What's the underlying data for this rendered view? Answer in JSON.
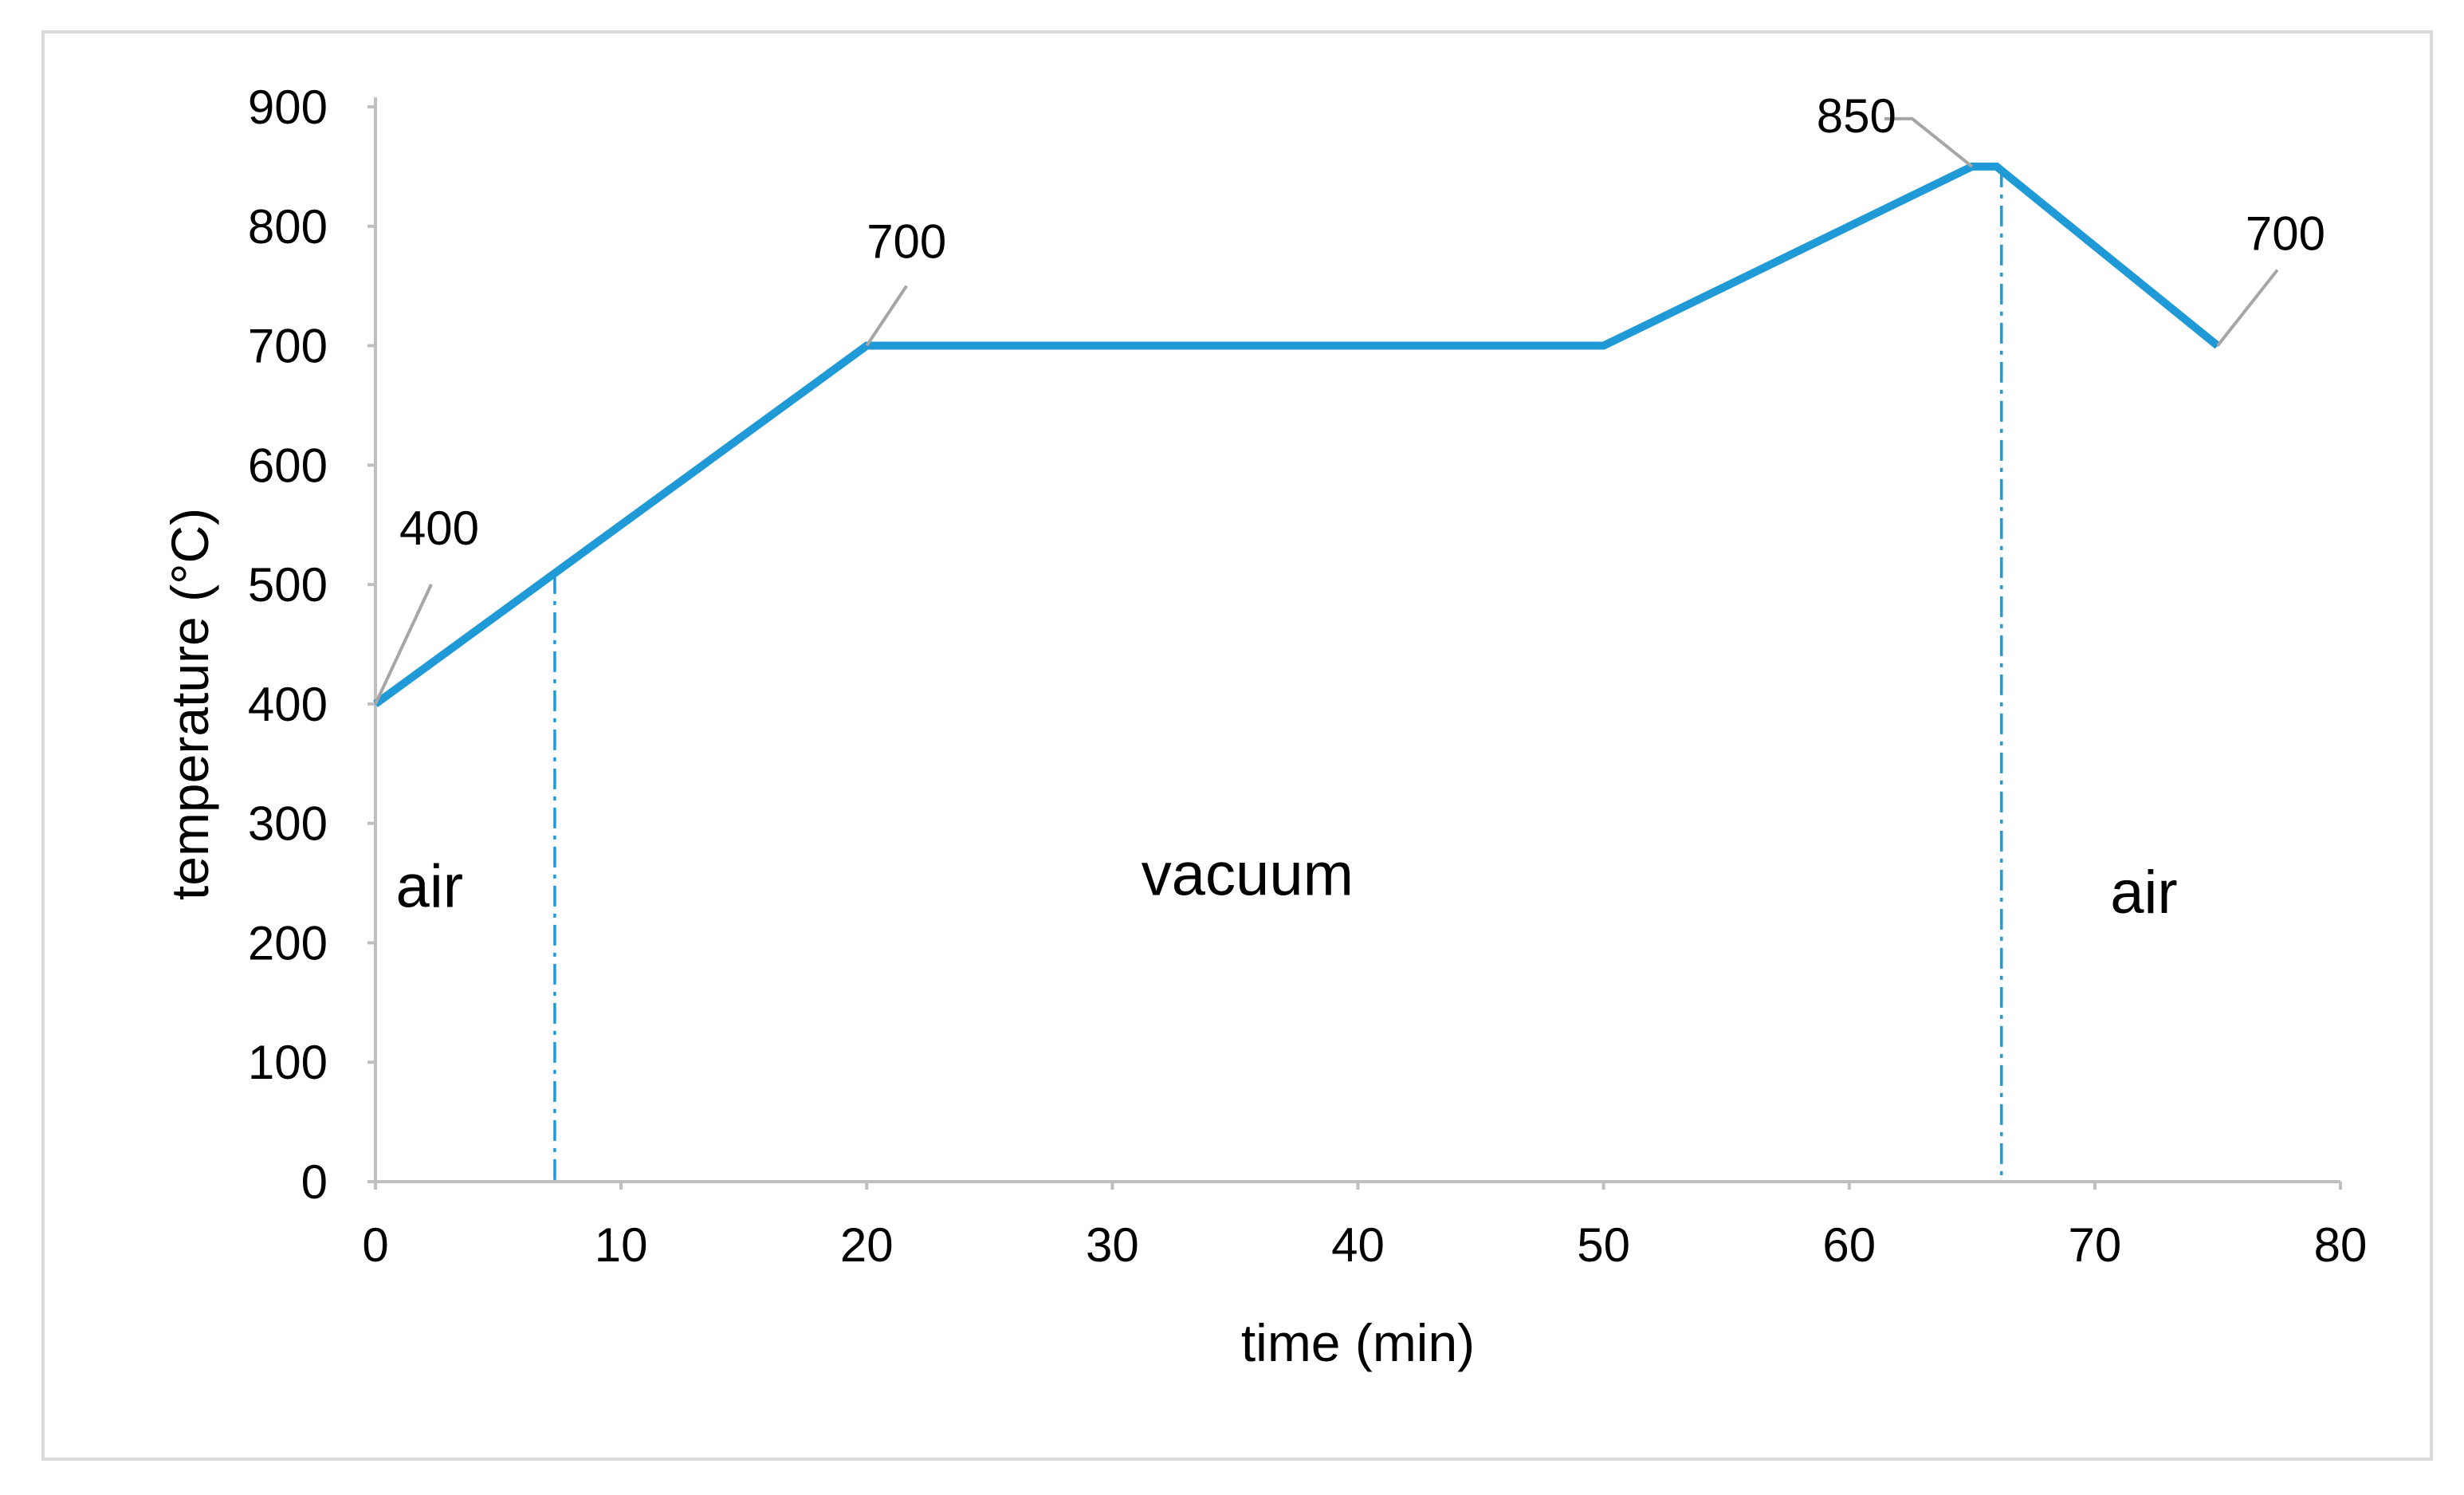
{
  "chart_data": {
    "type": "line",
    "xlabel": "time (min)",
    "ylabel": "temperature (°C)",
    "xlim": [
      0,
      80
    ],
    "ylim": [
      0,
      900
    ],
    "x_ticks": [
      0,
      10,
      20,
      30,
      40,
      50,
      60,
      70,
      80
    ],
    "y_ticks": [
      0,
      100,
      200,
      300,
      400,
      500,
      600,
      700,
      800,
      900
    ],
    "grid": false,
    "legend": "none",
    "series": [
      {
        "color": "#1f9ad6",
        "points": [
          {
            "x": 0,
            "y": 400
          },
          {
            "x": 20,
            "y": 700
          },
          {
            "x": 50,
            "y": 700
          },
          {
            "x": 65,
            "y": 850
          },
          {
            "x": 66,
            "y": 850
          },
          {
            "x": 75,
            "y": 700
          }
        ]
      }
    ],
    "annotations": [
      {
        "text": "400",
        "x": 0,
        "y": 400
      },
      {
        "text": "700",
        "x": 20,
        "y": 700
      },
      {
        "text": "850",
        "x": 65,
        "y": 850
      },
      {
        "text": "700",
        "x": 75,
        "y": 700
      }
    ],
    "dividers": [
      {
        "x": 7.3,
        "color": "#1f9ad6",
        "style": "dash-dot"
      },
      {
        "x": 66.2,
        "color": "#1f9ad6",
        "style": "dash-dot"
      }
    ],
    "regions": [
      {
        "text": "air",
        "x": 2.2,
        "y": 230
      },
      {
        "text": "vacuum",
        "x": 35.5,
        "y": 240
      },
      {
        "text": "air",
        "x": 72,
        "y": 225
      }
    ],
    "colors": {
      "line": "#1f9ad6",
      "axis": "#bfbfbf",
      "leader": "#a6a6a6",
      "frame": "#d9d9d9"
    }
  }
}
